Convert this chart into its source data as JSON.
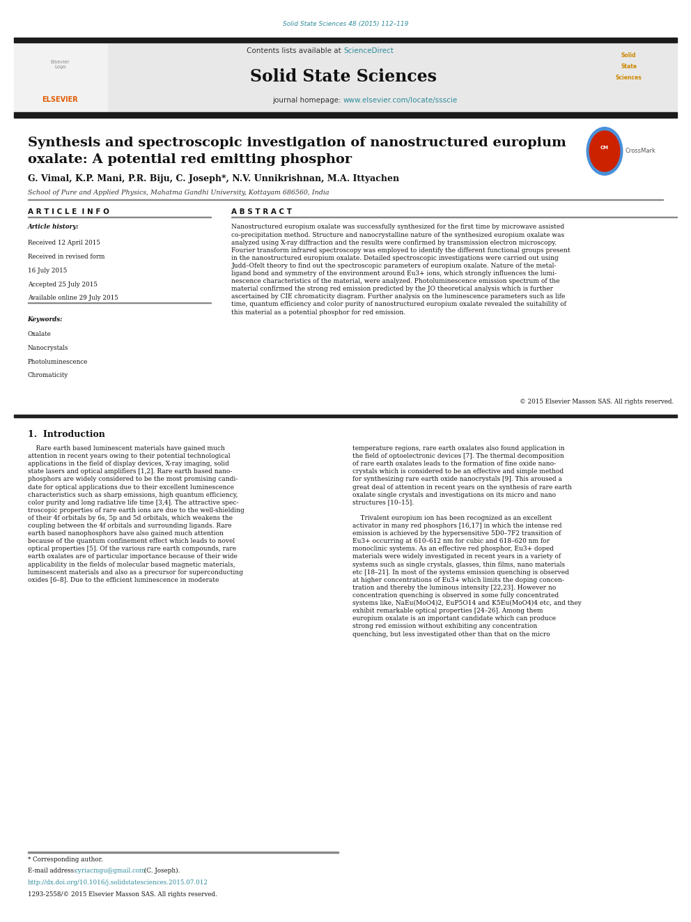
{
  "page_width": 9.92,
  "page_height": 13.23,
  "background_color": "#ffffff",
  "top_citation": "Solid State Sciences 48 (2015) 112–119",
  "top_citation_color": "#2E8B9A",
  "journal_name": "Solid State Sciences",
  "contents_text": "Contents lists available at ",
  "sciencedirect_text": "ScienceDirect",
  "sciencedirect_color": "#2E8B9A",
  "homepage_text": "journal homepage: ",
  "homepage_url": "www.elsevier.com/locate/ssscie",
  "homepage_url_color": "#2E8B9A",
  "title_line1": "Synthesis and spectroscopic investigation of nanostructured europium",
  "title_line2": "oxalate: A potential red emitting phosphor",
  "authors": "G. Vimal, K.P. Mani, P.R. Biju, C. Joseph*, N.V. Unnikrishnan, M.A. Ittyachen",
  "affiliation": "School of Pure and Applied Physics, Mahatma Gandhi University, Kottayam 686560, India",
  "article_info_header": "A R T I C L E  I N F O",
  "abstract_header": "A B S T R A C T",
  "article_history_label": "Article history:",
  "received_1": "Received 12 April 2015",
  "received_revised": "Received in revised form",
  "revised_date": "16 July 2015",
  "accepted": "Accepted 25 July 2015",
  "available": "Available online 29 July 2015",
  "keywords_label": "Keywords:",
  "keyword1": "Oxalate",
  "keyword2": "Nanocrystals",
  "keyword3": "Photoluminescence",
  "keyword4": "Chromaticity",
  "abstract_text": "Nanostructured europium oxalate was successfully synthesized for the first time by microwave assisted\nco-precipitation method. Structure and nanocrystalline nature of the synthesized europium oxalate was\nanalyzed using X-ray diffraction and the results were confirmed by transmission electron microscopy.\nFourier transform infrared spectroscopy was employed to identify the different functional groups present\nin the nanostructured europium oxalate. Detailed spectroscopic investigations were carried out using\nJudd–Ofelt theory to find out the spectroscopic parameters of europium oxalate. Nature of the metal-\nligand bond and symmetry of the environment around Eu3+ ions, which strongly influences the lumi-\nnescence characteristics of the material, were analyzed. Photoluminescence emission spectrum of the\nmaterial confirmed the strong red emission predicted by the JO theoretical analysis which is further\nascertained by CIE chromaticity diagram. Further analysis on the luminescence parameters such as life\ntime, quantum efficiency and color purity of nanostructured europium oxalate revealed the suitability of\nthis material as a potential phosphor for red emission.",
  "copyright_text": "© 2015 Elsevier Masson SAS. All rights reserved.",
  "intro_header": "1.  Introduction",
  "intro_col1": "    Rare earth based luminescent materials have gained much\nattention in recent years owing to their potential technological\napplications in the field of display devices, X-ray imaging, solid\nstate lasers and optical amplifiers [1,2]. Rare earth based nano-\nphosphors are widely considered to be the most promising candi-\ndate for optical applications due to their excellent luminescence\ncharacteristics such as sharp emissions, high quantum efficiency,\ncolor purity and long radiative life time [3,4]. The attractive spec-\ntroscopic properties of rare earth ions are due to the well-shielding\nof their 4f orbitals by 6s, 5p and 5d orbitals, which weakens the\ncoupling between the 4f orbitals and surrounding ligands. Rare\nearth based nanophosphors have also gained much attention\nbecause of the quantum confinement effect which leads to novel\noptical properties [5]. Of the various rare earth compounds, rare\nearth oxalates are of particular importance because of their wide\napplicability in the fields of molecular based magnetic materials,\nluminescent materials and also as a precursor for superconducting\noxides [6–8]. Due to the efficient luminescence in moderate",
  "intro_col2": "temperature regions, rare earth oxalates also found application in\nthe field of optoelectronic devices [7]. The thermal decomposition\nof rare earth oxalates leads to the formation of fine oxide nano-\ncrystals which is considered to be an effective and simple method\nfor synthesizing rare earth oxide nanocrystals [9]. This aroused a\ngreat deal of attention in recent years on the synthesis of rare earth\noxalate single crystals and investigations on its micro and nano\nstructures [10–15].\n\n    Trivalent europium ion has been recognized as an excellent\nactivator in many red phosphors [16,17] in which the intense red\nemission is achieved by the hypersensitive 5D0–7F2 transition of\nEu3+ occurring at 610–612 nm for cubic and 618–620 nm for\nmonoclinic systems. As an effective red phosphor, Eu3+ doped\nmaterials were widely investigated in recent years in a variety of\nsystems such as single crystals, glasses, thin films, nano materials\netc [18–21]. In most of the systems emission quenching is observed\nat higher concentrations of Eu3+ which limits the doping concen-\ntration and thereby the luminous intensity [22,23]. However no\nconcentration quenching is observed in some fully concentrated\nsystems like, NaEu(MoO4)2, EuP5O14 and K5Eu(MoO4)4 etc, and they\nexhibit remarkable optical properties [24–26]. Among them\neuropium oxalate is an important candidate which can produce\nstrong red emission without exhibiting any concentration\nquenching, but less investigated other than that on the micro",
  "footnote_corresponding": "* Corresponding author.",
  "footnote_email_label": "E-mail address: ",
  "footnote_email": "cyriacmgu@gmail.com",
  "footnote_email_color": "#2E8B9A",
  "footnote_email_suffix": " (C. Joseph).",
  "footnote_doi": "http://dx.doi.org/10.1016/j.solidstatesciences.2015.07.012",
  "footnote_doi_color": "#2E8B9A",
  "footnote_issn": "1293-2558/© 2015 Elsevier Masson SAS. All rights reserved.",
  "header_bg_color": "#e8e8e8",
  "top_bar_color": "#1a1a1a",
  "elsevier_color": "#e05a00"
}
